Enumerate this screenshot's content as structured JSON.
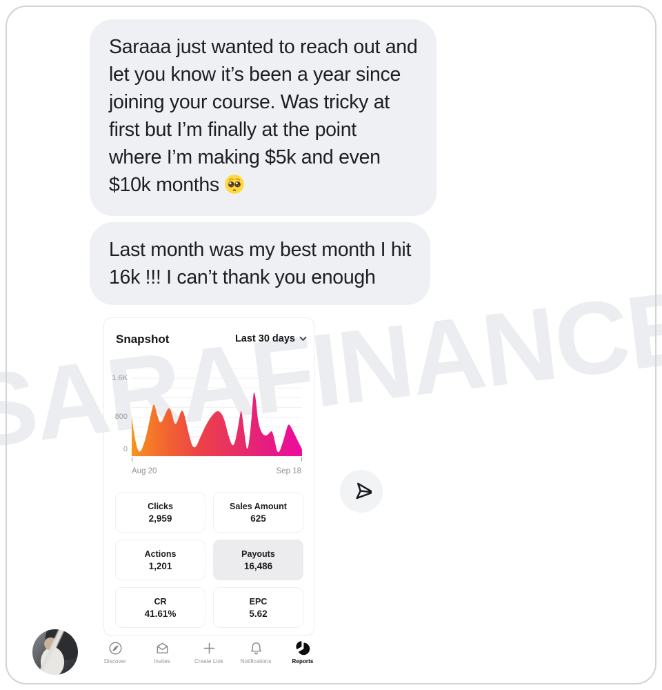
{
  "watermark": "SARAFINANCE",
  "messages": {
    "bubble1_lines": [
      "Saraaa just wanted to reach out and",
      "let you know it’s been a year since",
      "joining your course. Was tricky at",
      "first but I’m finally at the point",
      "where I’m making $5k and even",
      "$10k months"
    ],
    "bubble1_emoji": "pleading-face",
    "bubble2_lines": [
      "Last month was my best month I hit",
      "16k !!! I can’t thank you enough"
    ]
  },
  "dashboard": {
    "title": "Snapshot",
    "range": "Last 30 days",
    "stats": [
      {
        "label": "Clicks",
        "value": "2,959",
        "highlight": false
      },
      {
        "label": "Sales Amount",
        "value": "625",
        "highlight": false
      },
      {
        "label": "Actions",
        "value": "1,201",
        "highlight": false
      },
      {
        "label": "Payouts",
        "value": "16,486",
        "highlight": true
      },
      {
        "label": "CR",
        "value": "41.61%",
        "highlight": false
      },
      {
        "label": "EPC",
        "value": "5.62",
        "highlight": false
      }
    ],
    "nav": [
      {
        "label": "Discover",
        "icon": "compass-icon",
        "active": false
      },
      {
        "label": "Invites",
        "icon": "invite-envelope-icon",
        "active": false
      },
      {
        "label": "Create Link",
        "icon": "plus-icon",
        "active": false
      },
      {
        "label": "Notifications",
        "icon": "bell-icon",
        "active": false
      },
      {
        "label": "Reports",
        "icon": "pie-chart-icon",
        "active": true
      }
    ]
  },
  "chart_data": {
    "type": "area",
    "title": "Snapshot",
    "x_start_label": "Aug 20",
    "x_end_label": "Sep 18",
    "y_ticks": [
      "0",
      "800",
      "1.6K"
    ],
    "ylim": [
      0,
      1800
    ],
    "grid": true,
    "grid_step": 200,
    "legend": "none",
    "gradient": [
      "#F7941E",
      "#F2652F",
      "#EC4247",
      "#E82F63",
      "#E51C82",
      "#ED0C9E"
    ],
    "x_unit": "days since Aug 20",
    "points": [
      [
        0,
        820
      ],
      [
        0.3,
        500
      ],
      [
        1.2,
        0
      ],
      [
        2.3,
        300
      ],
      [
        3.4,
        950
      ],
      [
        3.8,
        1100
      ],
      [
        4.2,
        900
      ],
      [
        4.9,
        620
      ],
      [
        6.0,
        950
      ],
      [
        6.4,
        1000
      ],
      [
        6.8,
        900
      ],
      [
        7.4,
        580
      ],
      [
        8.3,
        900
      ],
      [
        8.6,
        950
      ],
      [
        9.0,
        850
      ],
      [
        9.6,
        500
      ],
      [
        10.6,
        80
      ],
      [
        11.9,
        450
      ],
      [
        12.9,
        700
      ],
      [
        13.9,
        870
      ],
      [
        14.8,
        950
      ],
      [
        15.7,
        800
      ],
      [
        16.5,
        400
      ],
      [
        17.3,
        150
      ],
      [
        18.0,
        500
      ],
      [
        18.5,
        900
      ],
      [
        18.7,
        950
      ],
      [
        19.2,
        450
      ],
      [
        19.7,
        30
      ],
      [
        20.3,
        600
      ],
      [
        20.7,
        1280
      ],
      [
        20.9,
        1330
      ],
      [
        21.2,
        1100
      ],
      [
        21.5,
        700
      ],
      [
        22.1,
        470
      ],
      [
        22.9,
        400
      ],
      [
        23.6,
        500
      ],
      [
        23.9,
        520
      ],
      [
        24.3,
        350
      ],
      [
        24.9,
        0
      ],
      [
        25.8,
        300
      ],
      [
        26.5,
        620
      ],
      [
        26.8,
        660
      ],
      [
        27.3,
        560
      ],
      [
        28.2,
        330
      ],
      [
        29,
        140
      ]
    ]
  }
}
